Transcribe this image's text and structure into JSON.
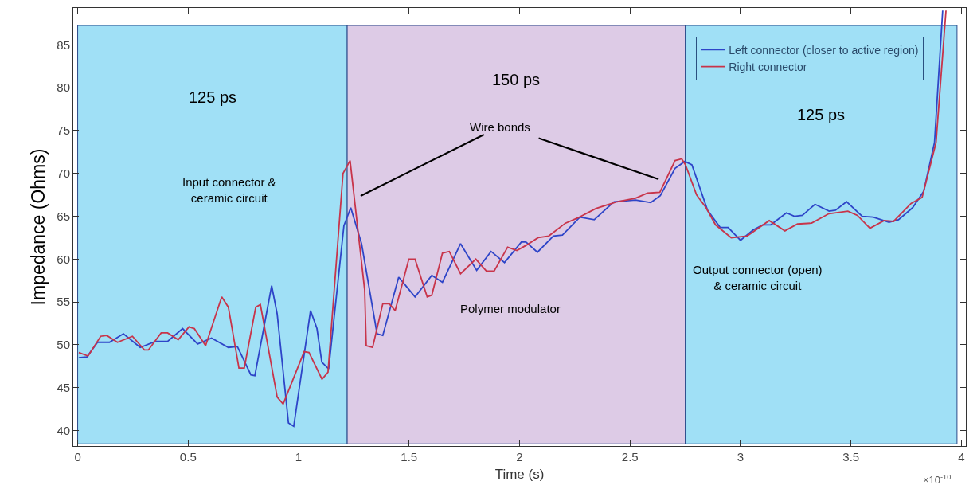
{
  "chart_data": {
    "type": "line",
    "xlabel": "Time (s)",
    "ylabel": "Impedance (Ohms)",
    "xlim": [
      -0.02,
      4.02
    ],
    "ylim": [
      38.2,
      89.3
    ],
    "xticks": [
      0,
      0.5,
      1,
      1.5,
      2,
      2.5,
      3,
      3.5,
      4
    ],
    "yticks": [
      40,
      45,
      50,
      55,
      60,
      65,
      70,
      75,
      80,
      85
    ],
    "grid": false,
    "legend": "top right",
    "marker": "none",
    "line_style": "solid",
    "bands": [
      {
        "axis": "x",
        "from": 0,
        "to": 1.22,
        "label": "125 ps",
        "color": "#a0e0f6"
      },
      {
        "axis": "x",
        "from": 1.22,
        "to": 2.75,
        "label": "150 ps",
        "color": "#ddcbe6"
      },
      {
        "axis": "x",
        "from": 2.75,
        "to": 3.98,
        "label": "125 ps",
        "color": "#a0e0f6"
      }
    ],
    "annotations": [
      "Input connector &\nceramic circuit",
      "Wire bonds",
      "Polymer modulator",
      "Output connector (open)\n& ceramic circuit",
      "×10$^{-10}$"
    ],
    "series": [
      {
        "name": "Left connector (closer to active region)",
        "color": "#2e45c8",
        "x": [
          0.005,
          0.042,
          0.09,
          0.144,
          0.207,
          0.283,
          0.352,
          0.407,
          0.475,
          0.543,
          0.606,
          0.682,
          0.723,
          0.784,
          0.802,
          0.878,
          0.903,
          0.954,
          0.978,
          1.054,
          1.083,
          1.105,
          1.136,
          1.205,
          1.236,
          1.285,
          1.355,
          1.381,
          1.453,
          1.527,
          1.603,
          1.651,
          1.733,
          1.806,
          1.871,
          1.932,
          2.008,
          2.029,
          2.081,
          2.153,
          2.194,
          2.273,
          2.338,
          2.428,
          2.525,
          2.594,
          2.637,
          2.704,
          2.748,
          2.78,
          2.851,
          2.908,
          2.944,
          3.0,
          3.057,
          3.101,
          3.137,
          3.208,
          3.244,
          3.28,
          3.337,
          3.401,
          3.43,
          3.48,
          3.551,
          3.601,
          3.672,
          3.715,
          3.779,
          3.829,
          3.878,
          3.915
        ],
        "values": [
          48.5,
          48.6,
          50.3,
          50.3,
          51.3,
          49.7,
          50.4,
          50.4,
          51.9,
          50.1,
          50.8,
          49.7,
          49.8,
          46.5,
          46.4,
          56.9,
          53.6,
          40.9,
          40.5,
          54.0,
          51.9,
          48.0,
          47.2,
          63.9,
          66.0,
          61.8,
          51.3,
          51.1,
          57.9,
          55.6,
          58.1,
          57.3,
          61.8,
          58.7,
          60.9,
          59.6,
          62.0,
          62.0,
          60.8,
          62.7,
          62.8,
          64.9,
          64.6,
          66.7,
          66.9,
          66.6,
          67.4,
          70.6,
          71.4,
          71.0,
          65.7,
          63.7,
          63.7,
          62.2,
          63.4,
          64.0,
          64.0,
          65.4,
          65.0,
          65.1,
          66.4,
          65.6,
          65.7,
          66.7,
          65.0,
          64.9,
          64.3,
          64.6,
          66.0,
          67.9,
          73.6,
          89.0
        ]
      },
      {
        "name": "Right connector",
        "color": "#c8344a",
        "x": [
          0.005,
          0.047,
          0.104,
          0.132,
          0.18,
          0.248,
          0.302,
          0.32,
          0.378,
          0.407,
          0.455,
          0.504,
          0.528,
          0.579,
          0.652,
          0.682,
          0.73,
          0.754,
          0.806,
          0.827,
          0.903,
          0.93,
          1.025,
          1.047,
          1.106,
          1.133,
          1.201,
          1.233,
          1.299,
          1.306,
          1.335,
          1.381,
          1.41,
          1.437,
          1.499,
          1.527,
          1.582,
          1.603,
          1.651,
          1.682,
          1.733,
          1.802,
          1.85,
          1.885,
          1.946,
          1.988,
          2.029,
          2.084,
          2.132,
          2.208,
          2.263,
          2.345,
          2.442,
          2.525,
          2.579,
          2.635,
          2.704,
          2.734,
          2.751,
          2.801,
          2.844,
          2.887,
          2.958,
          3.03,
          3.13,
          3.201,
          3.258,
          3.322,
          3.4,
          3.486,
          3.529,
          3.586,
          3.65,
          3.693,
          3.772,
          3.822,
          3.885,
          3.93
        ],
        "values": [
          49.1,
          48.7,
          51.0,
          51.1,
          50.3,
          51.0,
          49.4,
          49.4,
          51.4,
          51.4,
          50.6,
          52.1,
          51.9,
          49.9,
          55.6,
          54.4,
          47.3,
          47.3,
          54.4,
          54.7,
          43.9,
          43.1,
          49.2,
          49.1,
          46.0,
          46.8,
          70.0,
          71.5,
          56.4,
          49.9,
          49.7,
          54.8,
          54.8,
          54.0,
          60.0,
          60.0,
          55.6,
          55.8,
          60.7,
          60.9,
          58.3,
          60.0,
          58.6,
          58.6,
          61.4,
          61.0,
          61.6,
          62.5,
          62.7,
          64.2,
          64.8,
          65.9,
          66.7,
          67.1,
          67.7,
          67.8,
          71.5,
          71.7,
          71.0,
          67.5,
          66.0,
          64.0,
          62.5,
          62.7,
          64.5,
          63.3,
          64.1,
          64.2,
          65.3,
          65.6,
          65.1,
          63.6,
          64.5,
          64.4,
          66.5,
          67.2,
          73.6,
          89.0
        ]
      }
    ]
  }
}
